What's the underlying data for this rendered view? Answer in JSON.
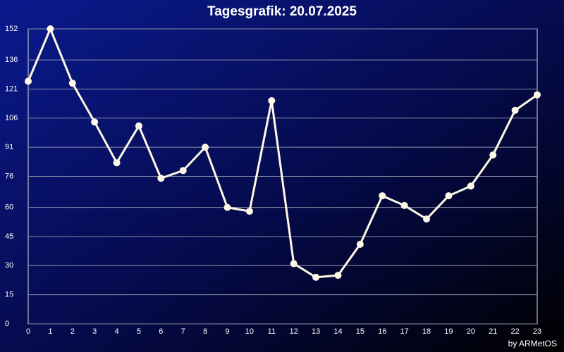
{
  "chart_data": {
    "type": "line",
    "title": "Tagesgrafik: 20.07.2025",
    "credit": "by ARMetOS",
    "x": [
      0,
      1,
      2,
      3,
      4,
      5,
      6,
      7,
      8,
      9,
      10,
      11,
      12,
      13,
      14,
      15,
      16,
      17,
      18,
      19,
      20,
      21,
      22,
      23
    ],
    "series": [
      {
        "color": "#fff8e6",
        "values": [
          125,
          152,
          124,
          104,
          83,
          102,
          75,
          79,
          91,
          60,
          58,
          115,
          31,
          24,
          25,
          41,
          66,
          61,
          54,
          66,
          71,
          87,
          110,
          118
        ]
      }
    ],
    "xlim": [
      0,
      23
    ],
    "ylim": [
      0,
      152
    ],
    "yticks": [
      0,
      15,
      30,
      45,
      60,
      76,
      91,
      106,
      121,
      136,
      152
    ],
    "grid": true
  }
}
